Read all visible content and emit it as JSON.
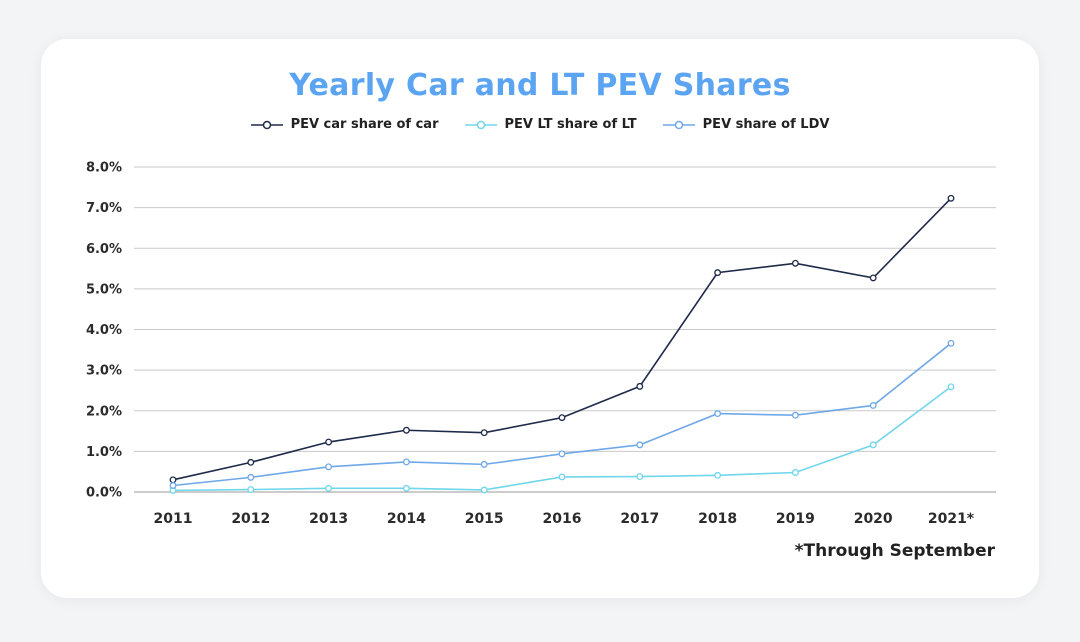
{
  "chart_data": {
    "type": "line",
    "title": "Yearly Car and LT PEV Shares",
    "categories": [
      "2011",
      "2012",
      "2013",
      "2014",
      "2015",
      "2016",
      "2017",
      "2018",
      "2019",
      "2020",
      "2021*"
    ],
    "series": [
      {
        "name": "PEV car share of car",
        "color": "#1f2a4a",
        "values": [
          0.3,
          0.73,
          1.23,
          1.52,
          1.46,
          1.83,
          2.6,
          5.4,
          5.63,
          5.27,
          7.23
        ]
      },
      {
        "name": "PEV LT share of LT",
        "color": "#6fd6ec",
        "values": [
          0.04,
          0.06,
          0.09,
          0.09,
          0.05,
          0.37,
          0.38,
          0.41,
          0.48,
          1.16,
          2.59
        ]
      },
      {
        "name": "PEV share of LDV",
        "color": "#6fa8e8",
        "values": [
          0.16,
          0.36,
          0.62,
          0.74,
          0.68,
          0.94,
          1.16,
          1.93,
          1.89,
          2.13,
          3.66
        ]
      }
    ],
    "yticks": [
      "0.0%",
      "1.0%",
      "2.0%",
      "3.0%",
      "4.0%",
      "5.0%",
      "6.0%",
      "7.0%",
      "8.0%"
    ],
    "ylim": [
      0,
      8
    ],
    "grid": true,
    "legend_position": "top-center",
    "footnote": "*Through September"
  }
}
